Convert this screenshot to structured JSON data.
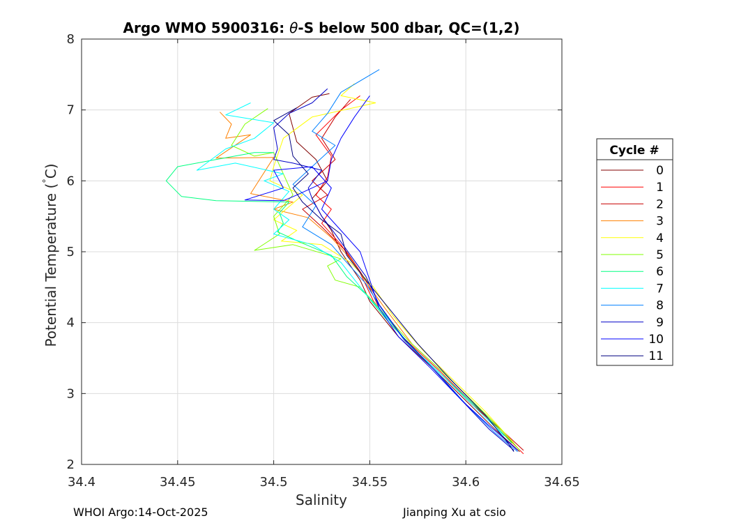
{
  "chart_data": {
    "type": "line",
    "title_prefix": "Argo WMO 5900316: ",
    "title_theta": "θ",
    "title_suffix": "-S below 500 dbar,  QC=(1,2)",
    "xlabel": "Salinity",
    "ylabel_text": "Potential Temperature (",
    "ylabel_degree": "°",
    "ylabel_unit": "C)",
    "xlim": [
      34.4,
      34.65
    ],
    "ylim": [
      2,
      8
    ],
    "xticks": [
      34.4,
      34.45,
      34.5,
      34.55,
      34.6,
      34.65
    ],
    "xtick_labels": [
      "34.4",
      "34.45",
      "34.5",
      "34.55",
      "34.6",
      "34.65"
    ],
    "yticks": [
      2,
      3,
      4,
      5,
      6,
      7,
      8
    ],
    "ytick_labels": [
      "2",
      "3",
      "4",
      "5",
      "6",
      "7",
      "8"
    ],
    "grid": true,
    "legend_title": "Cycle #",
    "legend_position": "right-outside",
    "series": [
      {
        "name": "0",
        "color": "#800000",
        "points": [
          [
            34.529,
            7.23
          ],
          [
            34.52,
            7.18
          ],
          [
            34.508,
            6.95
          ],
          [
            34.512,
            6.55
          ],
          [
            34.522,
            6.3
          ],
          [
            34.528,
            6.0
          ],
          [
            34.52,
            5.75
          ],
          [
            34.525,
            5.5
          ],
          [
            34.53,
            5.3
          ],
          [
            34.535,
            5.0
          ],
          [
            34.545,
            4.6
          ],
          [
            34.55,
            4.3
          ],
          [
            34.565,
            3.8
          ],
          [
            34.585,
            3.3
          ],
          [
            34.6,
            2.9
          ],
          [
            34.615,
            2.5
          ],
          [
            34.628,
            2.18
          ]
        ]
      },
      {
        "name": "1",
        "color": "#ff0000",
        "points": [
          [
            34.545,
            7.2
          ],
          [
            34.535,
            7.0
          ],
          [
            34.522,
            6.65
          ],
          [
            34.53,
            6.35
          ],
          [
            34.528,
            6.05
          ],
          [
            34.522,
            5.8
          ],
          [
            34.53,
            5.6
          ],
          [
            34.525,
            5.4
          ],
          [
            34.535,
            5.1
          ],
          [
            34.545,
            4.7
          ],
          [
            34.552,
            4.3
          ],
          [
            34.567,
            3.8
          ],
          [
            34.587,
            3.3
          ],
          [
            34.602,
            2.9
          ],
          [
            34.617,
            2.5
          ],
          [
            34.63,
            2.15
          ]
        ]
      },
      {
        "name": "2",
        "color": "#c80000",
        "points": [
          [
            34.54,
            7.15
          ],
          [
            34.532,
            6.9
          ],
          [
            34.525,
            6.6
          ],
          [
            34.532,
            6.3
          ],
          [
            34.52,
            6.0
          ],
          [
            34.528,
            5.8
          ],
          [
            34.515,
            5.6
          ],
          [
            34.525,
            5.35
          ],
          [
            34.538,
            5.0
          ],
          [
            34.548,
            4.6
          ],
          [
            34.555,
            4.2
          ],
          [
            34.57,
            3.7
          ],
          [
            34.588,
            3.25
          ],
          [
            34.603,
            2.85
          ],
          [
            34.62,
            2.45
          ],
          [
            34.63,
            2.2
          ]
        ]
      },
      {
        "name": "3",
        "color": "#ff8000",
        "points": [
          [
            34.472,
            6.97
          ],
          [
            34.478,
            6.8
          ],
          [
            34.475,
            6.6
          ],
          [
            34.488,
            6.65
          ],
          [
            34.47,
            6.32
          ],
          [
            34.5,
            6.33
          ],
          [
            34.488,
            5.82
          ],
          [
            34.51,
            5.7
          ],
          [
            34.5,
            5.6
          ],
          [
            34.518,
            5.48
          ],
          [
            34.53,
            5.2
          ],
          [
            34.54,
            4.9
          ],
          [
            34.55,
            4.5
          ],
          [
            34.558,
            4.2
          ],
          [
            34.572,
            3.7
          ],
          [
            34.59,
            3.25
          ],
          [
            34.605,
            2.85
          ],
          [
            34.62,
            2.45
          ],
          [
            34.628,
            2.2
          ]
        ]
      },
      {
        "name": "4",
        "color": "#ffff00",
        "points": [
          [
            34.542,
            7.37
          ],
          [
            34.535,
            7.2
          ],
          [
            34.553,
            7.1
          ],
          [
            34.52,
            6.9
          ],
          [
            34.505,
            6.6
          ],
          [
            34.5,
            6.2
          ],
          [
            34.498,
            6.0
          ],
          [
            34.515,
            5.8
          ],
          [
            34.5,
            5.45
          ],
          [
            34.512,
            5.3
          ],
          [
            34.504,
            5.15
          ],
          [
            34.525,
            5.1
          ],
          [
            34.54,
            4.85
          ],
          [
            34.552,
            4.5
          ],
          [
            34.562,
            4.1
          ],
          [
            34.578,
            3.6
          ],
          [
            34.595,
            3.15
          ],
          [
            34.61,
            2.75
          ],
          [
            34.625,
            2.3
          ]
        ]
      },
      {
        "name": "5",
        "color": "#80ff00",
        "points": [
          [
            34.497,
            7.02
          ],
          [
            34.485,
            6.8
          ],
          [
            34.478,
            6.5
          ],
          [
            34.49,
            6.35
          ],
          [
            34.5,
            6.4
          ],
          [
            34.505,
            6.1
          ],
          [
            34.51,
            5.8
          ],
          [
            34.5,
            5.5
          ],
          [
            34.503,
            5.25
          ],
          [
            34.49,
            5.02
          ],
          [
            34.51,
            5.1
          ],
          [
            34.535,
            4.9
          ],
          [
            34.528,
            4.8
          ],
          [
            34.532,
            4.6
          ],
          [
            34.545,
            4.5
          ],
          [
            34.555,
            4.2
          ],
          [
            34.57,
            3.75
          ],
          [
            34.588,
            3.3
          ],
          [
            34.605,
            2.85
          ],
          [
            34.618,
            2.5
          ],
          [
            34.628,
            2.2
          ]
        ]
      },
      {
        "name": "6",
        "color": "#00ff80",
        "points": [
          [
            34.5,
            6.4
          ],
          [
            34.49,
            6.4
          ],
          [
            34.47,
            6.3
          ],
          [
            34.45,
            6.2
          ],
          [
            34.444,
            6.0
          ],
          [
            34.452,
            5.78
          ],
          [
            34.47,
            5.72
          ],
          [
            34.508,
            5.7
          ],
          [
            34.503,
            5.55
          ],
          [
            34.505,
            5.4
          ],
          [
            34.502,
            5.28
          ],
          [
            34.515,
            5.12
          ],
          [
            34.53,
            4.95
          ],
          [
            34.538,
            4.65
          ],
          [
            34.548,
            4.4
          ],
          [
            34.56,
            4.0
          ],
          [
            34.576,
            3.55
          ],
          [
            34.594,
            3.1
          ],
          [
            34.61,
            2.7
          ],
          [
            34.624,
            2.3
          ]
        ]
      },
      {
        "name": "7",
        "color": "#00ffff",
        "points": [
          [
            34.488,
            7.1
          ],
          [
            34.475,
            6.93
          ],
          [
            34.5,
            6.82
          ],
          [
            34.49,
            6.6
          ],
          [
            34.475,
            6.45
          ],
          [
            34.46,
            6.15
          ],
          [
            34.48,
            6.25
          ],
          [
            34.505,
            6.1
          ],
          [
            34.495,
            6.0
          ],
          [
            34.508,
            5.85
          ],
          [
            34.5,
            5.6
          ],
          [
            34.508,
            5.45
          ],
          [
            34.5,
            5.25
          ],
          [
            34.52,
            5.1
          ],
          [
            34.535,
            4.85
          ],
          [
            34.548,
            4.4
          ],
          [
            34.558,
            4.1
          ],
          [
            34.572,
            3.65
          ],
          [
            34.59,
            3.2
          ],
          [
            34.605,
            2.8
          ],
          [
            34.62,
            2.4
          ]
        ]
      },
      {
        "name": "8",
        "color": "#0080ff",
        "points": [
          [
            34.555,
            7.57
          ],
          [
            34.535,
            7.25
          ],
          [
            34.528,
            6.95
          ],
          [
            34.52,
            6.7
          ],
          [
            34.532,
            6.5
          ],
          [
            34.52,
            6.2
          ],
          [
            34.51,
            5.95
          ],
          [
            34.522,
            5.65
          ],
          [
            34.515,
            5.35
          ],
          [
            34.53,
            5.1
          ],
          [
            34.538,
            4.85
          ],
          [
            34.548,
            4.55
          ],
          [
            34.556,
            4.2
          ],
          [
            34.568,
            3.75
          ],
          [
            34.585,
            3.3
          ],
          [
            34.6,
            2.85
          ],
          [
            34.615,
            2.45
          ],
          [
            34.627,
            2.18
          ]
        ]
      },
      {
        "name": "9",
        "color": "#0000c8",
        "points": [
          [
            34.528,
            7.3
          ],
          [
            34.52,
            7.1
          ],
          [
            34.508,
            6.95
          ],
          [
            34.5,
            6.75
          ],
          [
            34.502,
            6.45
          ],
          [
            34.5,
            6.3
          ],
          [
            34.51,
            6.25
          ],
          [
            34.525,
            6.15
          ],
          [
            34.518,
            5.9
          ],
          [
            34.52,
            5.75
          ],
          [
            34.525,
            5.5
          ],
          [
            34.532,
            5.25
          ],
          [
            34.54,
            4.95
          ],
          [
            34.548,
            4.65
          ],
          [
            34.555,
            4.25
          ],
          [
            34.567,
            3.8
          ],
          [
            34.583,
            3.35
          ],
          [
            34.598,
            2.9
          ],
          [
            34.612,
            2.5
          ],
          [
            34.625,
            2.2
          ]
        ]
      },
      {
        "name": "10",
        "color": "#0000ff",
        "points": [
          [
            34.55,
            7.2
          ],
          [
            34.542,
            6.9
          ],
          [
            34.535,
            6.6
          ],
          [
            34.53,
            6.3
          ],
          [
            34.528,
            6.0
          ],
          [
            34.512,
            5.8
          ],
          [
            34.505,
            5.72
          ],
          [
            34.485,
            5.73
          ],
          [
            34.505,
            5.9
          ],
          [
            34.5,
            6.15
          ],
          [
            34.52,
            6.2
          ],
          [
            34.53,
            5.9
          ],
          [
            34.525,
            5.6
          ],
          [
            34.535,
            5.3
          ],
          [
            34.545,
            5.0
          ],
          [
            34.55,
            4.6
          ],
          [
            34.555,
            4.2
          ],
          [
            34.565,
            3.8
          ],
          [
            34.582,
            3.35
          ],
          [
            34.598,
            2.9
          ],
          [
            34.612,
            2.55
          ],
          [
            34.627,
            2.2
          ]
        ]
      },
      {
        "name": "11",
        "color": "#000080",
        "points": [
          [
            34.512,
            7.03
          ],
          [
            34.5,
            6.85
          ],
          [
            34.508,
            6.65
          ],
          [
            34.51,
            6.35
          ],
          [
            34.518,
            6.1
          ],
          [
            34.51,
            5.9
          ],
          [
            34.515,
            5.7
          ],
          [
            34.525,
            5.45
          ],
          [
            34.535,
            5.25
          ],
          [
            34.538,
            4.95
          ],
          [
            34.548,
            4.6
          ],
          [
            34.56,
            4.2
          ],
          [
            34.575,
            3.7
          ],
          [
            34.592,
            3.2
          ],
          [
            34.61,
            2.7
          ],
          [
            34.622,
            2.3
          ],
          [
            34.625,
            2.18
          ]
        ]
      }
    ]
  },
  "footer": {
    "left": "WHOI Argo:14-Oct-2025",
    "right": "Jianping Xu at csio"
  }
}
